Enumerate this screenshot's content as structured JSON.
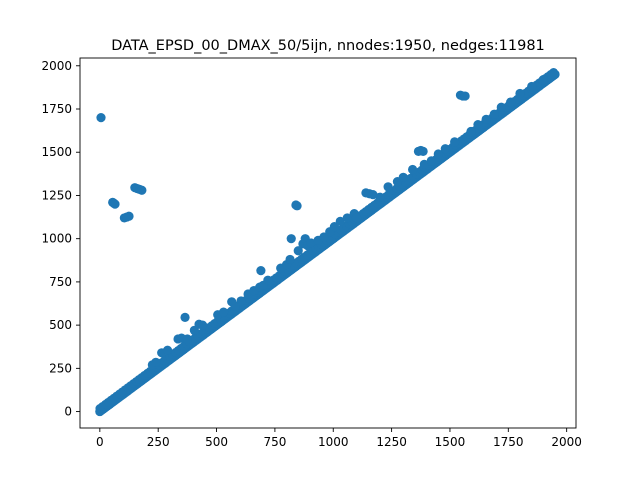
{
  "chart_data": {
    "type": "scatter",
    "title": "DATA_EPSD_00_DMAX_50/5ijn, nnodes:1950, nedges:11981",
    "xlabel": "",
    "ylabel": "",
    "xlim": [
      -85,
      2040
    ],
    "ylim": [
      -95,
      2045
    ],
    "xticks": [
      0,
      250,
      500,
      750,
      1000,
      1250,
      1500,
      1750,
      2000
    ],
    "yticks": [
      0,
      250,
      500,
      750,
      1000,
      1250,
      1500,
      1750,
      2000
    ],
    "grid": false,
    "color": "#1f77b4",
    "diagonal": {
      "x_start": 0,
      "x_end": 1950
    },
    "points": [
      [
        5,
        1700
      ],
      [
        55,
        1210
      ],
      [
        60,
        1205
      ],
      [
        65,
        1200
      ],
      [
        105,
        1120
      ],
      [
        115,
        1125
      ],
      [
        125,
        1130
      ],
      [
        150,
        1295
      ],
      [
        160,
        1290
      ],
      [
        170,
        1285
      ],
      [
        180,
        1280
      ],
      [
        225,
        270
      ],
      [
        240,
        285
      ],
      [
        265,
        340
      ],
      [
        290,
        355
      ],
      [
        335,
        420
      ],
      [
        350,
        425
      ],
      [
        365,
        545
      ],
      [
        375,
        420
      ],
      [
        405,
        470
      ],
      [
        425,
        505
      ],
      [
        440,
        500
      ],
      [
        505,
        560
      ],
      [
        530,
        575
      ],
      [
        565,
        635
      ],
      [
        580,
        610
      ],
      [
        605,
        640
      ],
      [
        635,
        680
      ],
      [
        660,
        700
      ],
      [
        685,
        720
      ],
      [
        690,
        815
      ],
      [
        700,
        730
      ],
      [
        720,
        760
      ],
      [
        775,
        830
      ],
      [
        800,
        850
      ],
      [
        815,
        880
      ],
      [
        820,
        1000
      ],
      [
        840,
        1195
      ],
      [
        845,
        1190
      ],
      [
        850,
        930
      ],
      [
        870,
        970
      ],
      [
        880,
        1000
      ],
      [
        890,
        960
      ],
      [
        905,
        975
      ],
      [
        935,
        990
      ],
      [
        960,
        1010
      ],
      [
        985,
        1040
      ],
      [
        1005,
        1070
      ],
      [
        1030,
        1100
      ],
      [
        1060,
        1120
      ],
      [
        1090,
        1145
      ],
      [
        1100,
        1120
      ],
      [
        1140,
        1265
      ],
      [
        1155,
        1260
      ],
      [
        1170,
        1255
      ],
      [
        1200,
        1240
      ],
      [
        1235,
        1300
      ],
      [
        1275,
        1330
      ],
      [
        1300,
        1355
      ],
      [
        1340,
        1400
      ],
      [
        1365,
        1505
      ],
      [
        1375,
        1510
      ],
      [
        1385,
        1505
      ],
      [
        1390,
        1430
      ],
      [
        1420,
        1450
      ],
      [
        1450,
        1490
      ],
      [
        1480,
        1520
      ],
      [
        1520,
        1560
      ],
      [
        1545,
        1830
      ],
      [
        1555,
        1825
      ],
      [
        1565,
        1825
      ],
      [
        1590,
        1620
      ],
      [
        1620,
        1660
      ],
      [
        1655,
        1690
      ],
      [
        1690,
        1720
      ],
      [
        1720,
        1760
      ],
      [
        1760,
        1790
      ],
      [
        1800,
        1840
      ],
      [
        1850,
        1880
      ],
      [
        1900,
        1920
      ],
      [
        1935,
        1948
      ],
      [
        1950,
        1950
      ]
    ]
  }
}
